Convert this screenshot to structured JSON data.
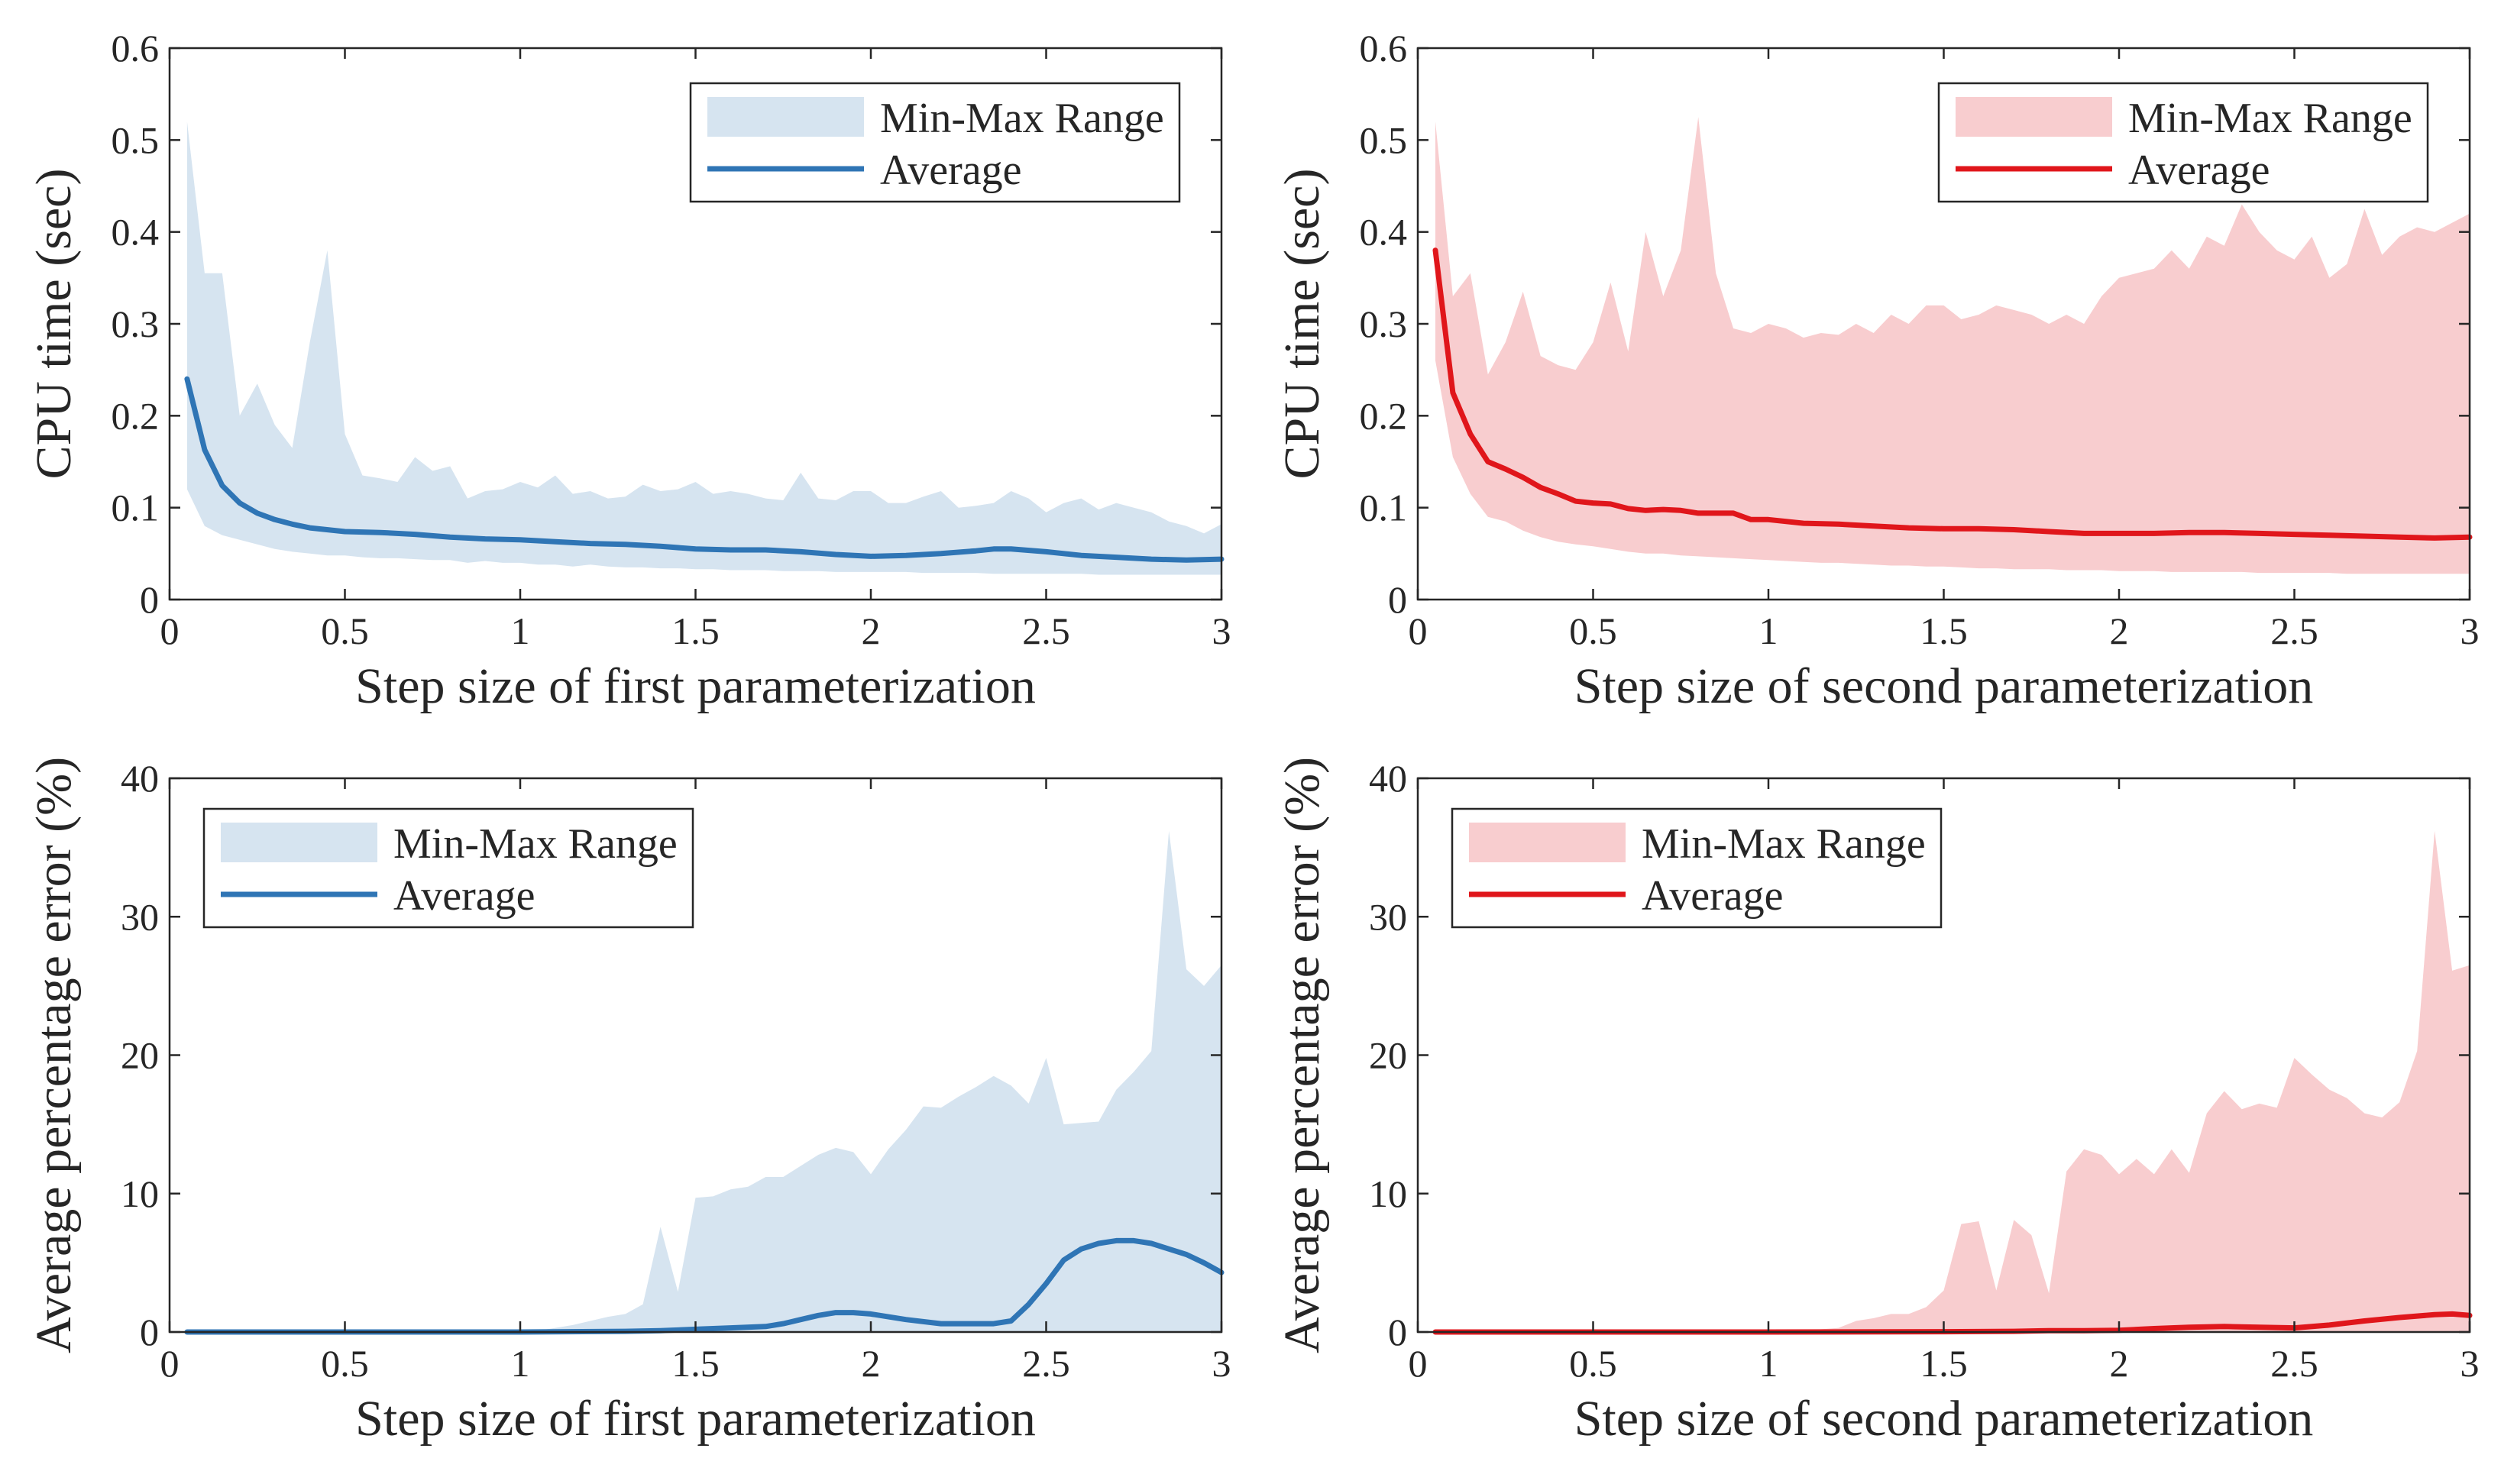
{
  "figure": {
    "colors": {
      "blue_line": "#2F75B5",
      "blue_fill": "#D6E4F0",
      "red_line": "#E0161B",
      "red_fill": "#F8CDCF",
      "axis": "#262626"
    }
  },
  "chart_data": [
    {
      "id": "cpu-first",
      "type": "area",
      "theme": "blue",
      "xlabel": "Step size of first parameterization",
      "ylabel": "CPU time (sec)",
      "xlim": [
        0,
        3
      ],
      "ylim": [
        0,
        0.6
      ],
      "xticks": [
        "0",
        "0.5",
        "1",
        "1.5",
        "2",
        "2.5",
        "3"
      ],
      "yticks": [
        "0",
        "0.1",
        "0.2",
        "0.3",
        "0.4",
        "0.5",
        "0.6"
      ],
      "legend": {
        "position": "top-right",
        "range_label": "Min-Max Range",
        "avg_label": "Average"
      },
      "series": [
        {
          "name": "Min-Max Range",
          "kind": "band",
          "x": [
            0.05,
            0.1,
            0.15,
            0.2,
            0.25,
            0.3,
            0.35,
            0.4,
            0.45,
            0.5,
            0.55,
            0.6,
            0.65,
            0.7,
            0.75,
            0.8,
            0.85,
            0.9,
            0.95,
            1.0,
            1.05,
            1.1,
            1.15,
            1.2,
            1.25,
            1.3,
            1.35,
            1.4,
            1.45,
            1.5,
            1.55,
            1.6,
            1.65,
            1.7,
            1.75,
            1.8,
            1.85,
            1.9,
            1.95,
            2.0,
            2.05,
            2.1,
            2.15,
            2.2,
            2.25,
            2.3,
            2.35,
            2.4,
            2.45,
            2.5,
            2.55,
            2.6,
            2.65,
            2.7,
            2.75,
            2.8,
            2.85,
            2.9,
            2.95,
            3.0
          ],
          "upper": [
            0.52,
            0.355,
            0.355,
            0.2,
            0.235,
            0.19,
            0.165,
            0.28,
            0.38,
            0.18,
            0.135,
            0.132,
            0.128,
            0.155,
            0.14,
            0.145,
            0.11,
            0.118,
            0.12,
            0.128,
            0.122,
            0.135,
            0.115,
            0.118,
            0.11,
            0.112,
            0.125,
            0.118,
            0.12,
            0.128,
            0.115,
            0.118,
            0.115,
            0.11,
            0.108,
            0.138,
            0.11,
            0.108,
            0.118,
            0.118,
            0.105,
            0.105,
            0.112,
            0.118,
            0.1,
            0.102,
            0.105,
            0.118,
            0.11,
            0.095,
            0.105,
            0.11,
            0.098,
            0.105,
            0.1,
            0.095,
            0.085,
            0.08,
            0.072,
            0.082
          ],
          "lower": [
            0.12,
            0.08,
            0.07,
            0.065,
            0.06,
            0.055,
            0.052,
            0.05,
            0.048,
            0.048,
            0.046,
            0.045,
            0.045,
            0.044,
            0.043,
            0.043,
            0.04,
            0.042,
            0.04,
            0.04,
            0.038,
            0.038,
            0.036,
            0.038,
            0.036,
            0.035,
            0.035,
            0.034,
            0.034,
            0.033,
            0.033,
            0.032,
            0.032,
            0.032,
            0.031,
            0.031,
            0.031,
            0.03,
            0.03,
            0.03,
            0.03,
            0.03,
            0.029,
            0.029,
            0.029,
            0.029,
            0.028,
            0.028,
            0.028,
            0.028,
            0.028,
            0.028,
            0.027,
            0.027,
            0.027,
            0.027,
            0.027,
            0.027,
            0.027,
            0.027
          ]
        },
        {
          "name": "Average",
          "kind": "line",
          "x": [
            0.05,
            0.1,
            0.15,
            0.2,
            0.25,
            0.3,
            0.35,
            0.4,
            0.5,
            0.6,
            0.7,
            0.8,
            0.9,
            1.0,
            1.1,
            1.2,
            1.3,
            1.4,
            1.5,
            1.6,
            1.7,
            1.8,
            1.9,
            2.0,
            2.1,
            2.2,
            2.3,
            2.35,
            2.4,
            2.5,
            2.6,
            2.7,
            2.8,
            2.9,
            3.0
          ],
          "y": [
            0.24,
            0.163,
            0.124,
            0.105,
            0.094,
            0.087,
            0.082,
            0.078,
            0.074,
            0.073,
            0.071,
            0.068,
            0.066,
            0.065,
            0.063,
            0.061,
            0.06,
            0.058,
            0.055,
            0.054,
            0.054,
            0.052,
            0.049,
            0.047,
            0.048,
            0.05,
            0.053,
            0.055,
            0.055,
            0.052,
            0.048,
            0.046,
            0.044,
            0.043,
            0.044
          ]
        }
      ]
    },
    {
      "id": "cpu-second",
      "type": "area",
      "theme": "red",
      "xlabel": "Step size of second parameterization",
      "ylabel": "CPU time (sec)",
      "xlim": [
        0,
        3
      ],
      "ylim": [
        0,
        0.6
      ],
      "xticks": [
        "0",
        "0.5",
        "1",
        "1.5",
        "2",
        "2.5",
        "3"
      ],
      "yticks": [
        "0",
        "0.1",
        "0.2",
        "0.3",
        "0.4",
        "0.5",
        "0.6"
      ],
      "legend": {
        "position": "top-right",
        "range_label": "Min-Max Range",
        "avg_label": "Average"
      },
      "series": [
        {
          "name": "Min-Max Range",
          "kind": "band",
          "x": [
            0.05,
            0.1,
            0.15,
            0.2,
            0.25,
            0.3,
            0.35,
            0.4,
            0.45,
            0.5,
            0.55,
            0.6,
            0.65,
            0.7,
            0.75,
            0.8,
            0.85,
            0.9,
            0.95,
            1.0,
            1.05,
            1.1,
            1.15,
            1.2,
            1.25,
            1.3,
            1.35,
            1.4,
            1.45,
            1.5,
            1.55,
            1.6,
            1.65,
            1.7,
            1.75,
            1.8,
            1.85,
            1.9,
            1.95,
            2.0,
            2.05,
            2.1,
            2.15,
            2.2,
            2.25,
            2.3,
            2.35,
            2.4,
            2.45,
            2.5,
            2.55,
            2.6,
            2.65,
            2.7,
            2.75,
            2.8,
            2.85,
            2.9,
            2.95,
            3.0
          ],
          "upper": [
            0.52,
            0.33,
            0.355,
            0.245,
            0.28,
            0.335,
            0.265,
            0.255,
            0.25,
            0.28,
            0.345,
            0.27,
            0.4,
            0.33,
            0.38,
            0.525,
            0.355,
            0.295,
            0.29,
            0.3,
            0.295,
            0.285,
            0.29,
            0.288,
            0.3,
            0.29,
            0.31,
            0.3,
            0.32,
            0.32,
            0.305,
            0.31,
            0.32,
            0.315,
            0.31,
            0.3,
            0.31,
            0.3,
            0.33,
            0.35,
            0.355,
            0.36,
            0.38,
            0.36,
            0.395,
            0.385,
            0.43,
            0.4,
            0.38,
            0.37,
            0.395,
            0.35,
            0.365,
            0.425,
            0.375,
            0.395,
            0.405,
            0.4,
            0.41,
            0.42
          ],
          "lower": [
            0.26,
            0.155,
            0.115,
            0.09,
            0.085,
            0.075,
            0.068,
            0.063,
            0.06,
            0.058,
            0.055,
            0.052,
            0.05,
            0.05,
            0.048,
            0.047,
            0.046,
            0.045,
            0.044,
            0.043,
            0.042,
            0.041,
            0.04,
            0.04,
            0.039,
            0.038,
            0.037,
            0.037,
            0.036,
            0.036,
            0.035,
            0.034,
            0.034,
            0.033,
            0.033,
            0.033,
            0.032,
            0.032,
            0.032,
            0.031,
            0.031,
            0.031,
            0.03,
            0.03,
            0.03,
            0.03,
            0.03,
            0.029,
            0.029,
            0.029,
            0.029,
            0.029,
            0.028,
            0.028,
            0.028,
            0.028,
            0.028,
            0.028,
            0.028,
            0.028
          ]
        },
        {
          "name": "Average",
          "kind": "line",
          "x": [
            0.05,
            0.1,
            0.15,
            0.2,
            0.25,
            0.3,
            0.35,
            0.4,
            0.45,
            0.5,
            0.55,
            0.6,
            0.65,
            0.7,
            0.75,
            0.8,
            0.85,
            0.9,
            0.95,
            1.0,
            1.1,
            1.2,
            1.3,
            1.4,
            1.5,
            1.6,
            1.7,
            1.8,
            1.9,
            2.0,
            2.1,
            2.2,
            2.3,
            2.4,
            2.5,
            2.6,
            2.7,
            2.8,
            2.9,
            3.0
          ],
          "y": [
            0.38,
            0.225,
            0.18,
            0.15,
            0.142,
            0.133,
            0.122,
            0.115,
            0.107,
            0.105,
            0.104,
            0.099,
            0.097,
            0.098,
            0.097,
            0.094,
            0.094,
            0.094,
            0.087,
            0.087,
            0.083,
            0.082,
            0.08,
            0.078,
            0.077,
            0.077,
            0.076,
            0.074,
            0.072,
            0.072,
            0.072,
            0.073,
            0.073,
            0.072,
            0.071,
            0.07,
            0.069,
            0.068,
            0.067,
            0.068
          ]
        }
      ]
    },
    {
      "id": "err-first",
      "type": "area",
      "theme": "blue",
      "xlabel": "Step size of first parameterization",
      "ylabel": "Average percentage error (%)",
      "xlim": [
        0,
        3
      ],
      "ylim": [
        0,
        40
      ],
      "xticks": [
        "0",
        "0.5",
        "1",
        "1.5",
        "2",
        "2.5",
        "3"
      ],
      "yticks": [
        "0",
        "10",
        "20",
        "30",
        "40"
      ],
      "legend": {
        "position": "top-left",
        "range_label": "Min-Max Range",
        "avg_label": "Average"
      },
      "series": [
        {
          "name": "Min-Max Range",
          "kind": "band",
          "x": [
            0.05,
            0.5,
            1.0,
            1.05,
            1.1,
            1.15,
            1.2,
            1.25,
            1.3,
            1.35,
            1.4,
            1.45,
            1.5,
            1.55,
            1.6,
            1.65,
            1.7,
            1.75,
            1.8,
            1.85,
            1.9,
            1.95,
            2.0,
            2.05,
            2.1,
            2.15,
            2.2,
            2.25,
            2.3,
            2.35,
            2.4,
            2.45,
            2.5,
            2.55,
            2.6,
            2.65,
            2.7,
            2.75,
            2.8,
            2.85,
            2.9,
            2.95,
            3.0
          ],
          "upper": [
            0,
            0,
            0,
            0.1,
            0.3,
            0.5,
            0.8,
            1.1,
            1.3,
            2.0,
            7.6,
            2.9,
            9.7,
            9.8,
            10.3,
            10.5,
            11.2,
            11.2,
            12.0,
            12.8,
            13.3,
            13.0,
            11.4,
            13.2,
            14.6,
            16.3,
            16.2,
            17.0,
            17.7,
            18.5,
            17.8,
            16.5,
            19.8,
            15.0,
            15.1,
            15.2,
            17.5,
            18.8,
            20.3,
            36.2,
            26.2,
            25.0,
            26.5
          ],
          "lower": [
            0,
            0,
            0,
            0,
            0,
            0,
            0,
            0,
            0,
            0,
            0,
            0,
            0,
            0,
            0,
            0,
            0,
            0,
            0,
            0,
            0,
            0,
            0,
            0,
            0,
            0,
            0,
            0,
            0,
            0,
            0,
            0,
            0,
            0,
            0,
            0,
            0,
            0,
            0,
            0,
            0,
            0,
            0
          ]
        },
        {
          "name": "Average",
          "kind": "line",
          "x": [
            0.05,
            1.0,
            1.3,
            1.4,
            1.5,
            1.6,
            1.7,
            1.75,
            1.8,
            1.85,
            1.9,
            1.95,
            2.0,
            2.1,
            2.2,
            2.3,
            2.35,
            2.4,
            2.45,
            2.5,
            2.55,
            2.6,
            2.65,
            2.7,
            2.75,
            2.8,
            2.85,
            2.9,
            2.95,
            3.0
          ],
          "y": [
            0,
            0,
            0.05,
            0.1,
            0.2,
            0.3,
            0.4,
            0.6,
            0.9,
            1.2,
            1.4,
            1.4,
            1.3,
            0.9,
            0.6,
            0.6,
            0.6,
            0.8,
            2.0,
            3.5,
            5.2,
            6.0,
            6.4,
            6.6,
            6.6,
            6.4,
            6.0,
            5.6,
            5.0,
            4.3
          ]
        }
      ]
    },
    {
      "id": "err-second",
      "type": "area",
      "theme": "red",
      "xlabel": "Step size of second parameterization",
      "ylabel": "Average percentage error (%)",
      "xlim": [
        0,
        3
      ],
      "ylim": [
        0,
        40
      ],
      "xticks": [
        "0",
        "0.5",
        "1",
        "1.5",
        "2",
        "2.5",
        "3"
      ],
      "yticks": [
        "0",
        "10",
        "20",
        "30",
        "40"
      ],
      "legend": {
        "position": "top-left",
        "range_label": "Min-Max Range",
        "avg_label": "Average"
      },
      "series": [
        {
          "name": "Min-Max Range",
          "kind": "band",
          "x": [
            0.05,
            0.5,
            1.0,
            1.05,
            1.1,
            1.15,
            1.2,
            1.25,
            1.3,
            1.35,
            1.4,
            1.45,
            1.5,
            1.55,
            1.6,
            1.65,
            1.7,
            1.75,
            1.8,
            1.85,
            1.9,
            1.95,
            2.0,
            2.05,
            2.1,
            2.15,
            2.2,
            2.25,
            2.3,
            2.35,
            2.4,
            2.45,
            2.5,
            2.55,
            2.6,
            2.65,
            2.7,
            2.75,
            2.8,
            2.85,
            2.9,
            2.95,
            3.0
          ],
          "upper": [
            0,
            0,
            0,
            0,
            0.1,
            0.2,
            0.3,
            0.8,
            1.0,
            1.3,
            1.3,
            1.8,
            3.0,
            7.8,
            8.0,
            3.0,
            8.1,
            7.0,
            2.8,
            11.6,
            13.2,
            12.8,
            11.4,
            12.5,
            11.4,
            13.2,
            11.5,
            15.8,
            17.4,
            16.1,
            16.5,
            16.2,
            19.8,
            18.6,
            17.5,
            16.9,
            15.8,
            15.5,
            16.6,
            20.3,
            36.2,
            26.1,
            26.5
          ],
          "lower": [
            0,
            0,
            0,
            0,
            0,
            0,
            0,
            0,
            0,
            0,
            0,
            0,
            0,
            0,
            0,
            0,
            0,
            0,
            0,
            0,
            0,
            0,
            0,
            0,
            0,
            0,
            0,
            0,
            0,
            0,
            0,
            0,
            0,
            0,
            0,
            0,
            0,
            0,
            0,
            0,
            0,
            0,
            0
          ]
        },
        {
          "name": "Average",
          "kind": "line",
          "x": [
            0.05,
            1.0,
            1.5,
            1.7,
            1.8,
            1.9,
            2.0,
            2.1,
            2.2,
            2.3,
            2.4,
            2.5,
            2.6,
            2.7,
            2.8,
            2.9,
            2.95,
            3.0
          ],
          "y": [
            0,
            0,
            0.02,
            0.05,
            0.1,
            0.1,
            0.12,
            0.25,
            0.35,
            0.4,
            0.35,
            0.3,
            0.5,
            0.8,
            1.05,
            1.25,
            1.3,
            1.2
          ]
        }
      ]
    }
  ]
}
